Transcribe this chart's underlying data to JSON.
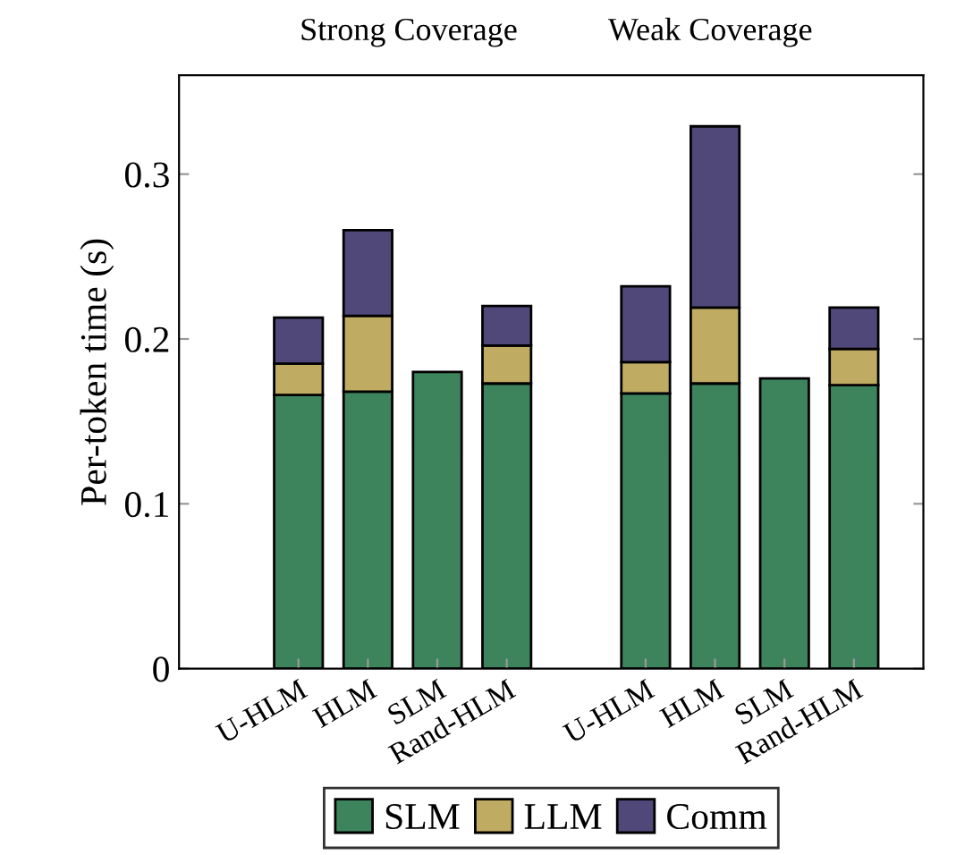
{
  "chart_data": {
    "type": "bar",
    "stacked": true,
    "ylabel": "Per-token time (s)",
    "annotations": [
      "Strong Coverage",
      "Weak Coverage"
    ],
    "categories": [
      "U-HLM",
      "HLM",
      "SLM",
      "Rand-HLM",
      null,
      "U-HLM",
      "HLM",
      "SLM",
      "Rand-HLM"
    ],
    "series": [
      {
        "name": "SLM",
        "color": "#3d845c",
        "values": [
          0.166,
          0.168,
          0.18,
          0.173,
          null,
          0.167,
          0.173,
          0.176,
          0.172
        ]
      },
      {
        "name": "LLM",
        "color": "#bfac62",
        "values": [
          0.019,
          0.046,
          null,
          0.023,
          null,
          0.019,
          0.046,
          null,
          0.022
        ]
      },
      {
        "name": "Comm",
        "color": "#4f4878",
        "values": [
          0.028,
          0.052,
          null,
          0.024,
          null,
          0.046,
          0.11,
          null,
          0.025
        ]
      }
    ],
    "ylim": [
      0,
      0.36
    ],
    "yticks": [
      0,
      0.1,
      0.2,
      0.3
    ],
    "grid": false,
    "legend": "bottom"
  }
}
